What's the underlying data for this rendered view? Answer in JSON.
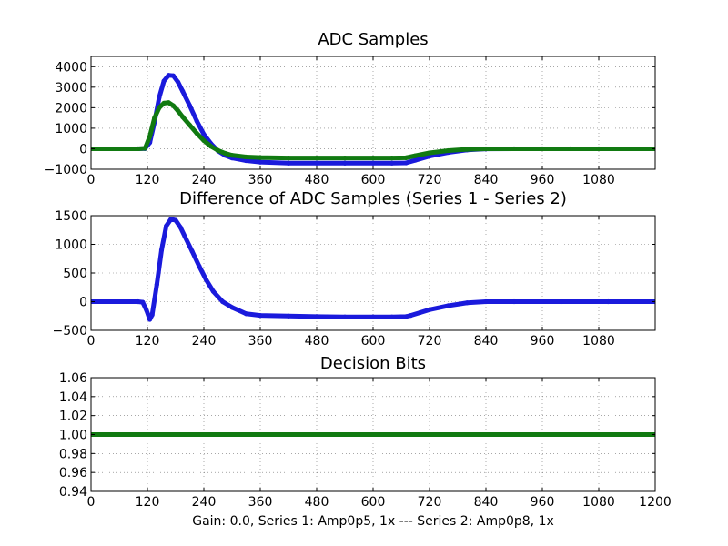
{
  "figure": {
    "xlabel": "Gain: 0.0, Series 1: Amp0p5, 1x --- Series 2: Amp0p8, 1x"
  },
  "colors": {
    "series1": "#1a1adc",
    "series2": "#117a11",
    "background": "#ffffff"
  },
  "chart_data": [
    {
      "type": "scatter",
      "title": "ADC Samples",
      "xlim": [
        0,
        1200
      ],
      "ylim": [
        -1000,
        4500
      ],
      "xticks": [
        0,
        120,
        240,
        360,
        480,
        600,
        720,
        840,
        960,
        1080
      ],
      "xtick_labels": [
        "0",
        "120",
        "240",
        "360",
        "480",
        "600",
        "720",
        "840",
        "960",
        "1080"
      ],
      "yticks": [
        -1000,
        0,
        1000,
        2000,
        3000,
        4000
      ],
      "ytick_labels": [
        "−1000",
        "0",
        "1000",
        "2000",
        "3000",
        "4000"
      ],
      "series": [
        {
          "name": "Series 1",
          "x": [
            0,
            100,
            115,
            125,
            135,
            145,
            155,
            165,
            175,
            185,
            195,
            210,
            225,
            240,
            255,
            270,
            285,
            300,
            330,
            360,
            420,
            480,
            540,
            600,
            640,
            670,
            690,
            720,
            760,
            800,
            840,
            900,
            960,
            1020,
            1080,
            1200
          ],
          "values": [
            0,
            0,
            10,
            300,
            1300,
            2500,
            3300,
            3580,
            3560,
            3250,
            2800,
            2100,
            1350,
            700,
            250,
            -100,
            -320,
            -450,
            -580,
            -650,
            -700,
            -700,
            -700,
            -700,
            -700,
            -690,
            -560,
            -360,
            -180,
            -60,
            -10,
            0,
            0,
            0,
            0,
            0
          ]
        },
        {
          "name": "Series 2",
          "x": [
            0,
            100,
            115,
            125,
            135,
            145,
            155,
            165,
            175,
            185,
            195,
            210,
            225,
            240,
            255,
            270,
            285,
            300,
            330,
            360,
            420,
            480,
            540,
            600,
            640,
            670,
            690,
            720,
            760,
            800,
            840,
            900,
            960,
            1020,
            1080,
            1200
          ],
          "values": [
            0,
            0,
            20,
            600,
            1500,
            2000,
            2220,
            2250,
            2100,
            1850,
            1550,
            1150,
            750,
            400,
            120,
            -80,
            -220,
            -320,
            -400,
            -430,
            -450,
            -450,
            -450,
            -450,
            -450,
            -440,
            -340,
            -200,
            -90,
            -30,
            0,
            0,
            0,
            0,
            0,
            0
          ]
        }
      ]
    },
    {
      "type": "scatter",
      "title": "Difference of ADC Samples (Series 1 - Series 2)",
      "xlim": [
        0,
        1200
      ],
      "ylim": [
        -500,
        1500
      ],
      "xticks": [
        0,
        120,
        240,
        360,
        480,
        600,
        720,
        840,
        960,
        1080
      ],
      "xtick_labels": [
        "0",
        "120",
        "240",
        "360",
        "480",
        "600",
        "720",
        "840",
        "960",
        "1080"
      ],
      "yticks": [
        -500,
        0,
        500,
        1000,
        1500
      ],
      "ytick_labels": [
        "−500",
        "0",
        "500",
        "1000",
        "1500"
      ],
      "series": [
        {
          "name": "Series 1 - Series 2",
          "x": [
            0,
            100,
            110,
            118,
            125,
            130,
            140,
            150,
            160,
            170,
            180,
            190,
            200,
            215,
            230,
            245,
            260,
            280,
            300,
            330,
            360,
            420,
            480,
            540,
            600,
            640,
            670,
            680,
            700,
            720,
            760,
            800,
            840,
            900,
            1000,
            1100,
            1200
          ],
          "values": [
            0,
            0,
            -10,
            -150,
            -310,
            -230,
            300,
            900,
            1320,
            1440,
            1420,
            1300,
            1130,
            880,
            620,
            380,
            180,
            0,
            -100,
            -210,
            -240,
            -250,
            -260,
            -265,
            -265,
            -265,
            -260,
            -240,
            -190,
            -140,
            -70,
            -20,
            0,
            0,
            0,
            0,
            0
          ]
        }
      ]
    },
    {
      "type": "line",
      "title": "Decision Bits",
      "xlim": [
        0,
        1200
      ],
      "ylim": [
        0.94,
        1.06
      ],
      "xticks": [
        0,
        120,
        240,
        360,
        480,
        600,
        720,
        840,
        960,
        1080,
        1200
      ],
      "xtick_labels": [
        "0",
        "120",
        "240",
        "360",
        "480",
        "600",
        "720",
        "840",
        "960",
        "1080",
        "1200"
      ],
      "yticks": [
        0.94,
        0.96,
        0.98,
        1.0,
        1.02,
        1.04,
        1.06
      ],
      "ytick_labels": [
        "0.94",
        "0.96",
        "0.98",
        "1.00",
        "1.02",
        "1.04",
        "1.06"
      ],
      "series": [
        {
          "name": "Decision Bits",
          "x": [
            0,
            1200
          ],
          "values": [
            1.0,
            1.0
          ]
        }
      ]
    }
  ]
}
